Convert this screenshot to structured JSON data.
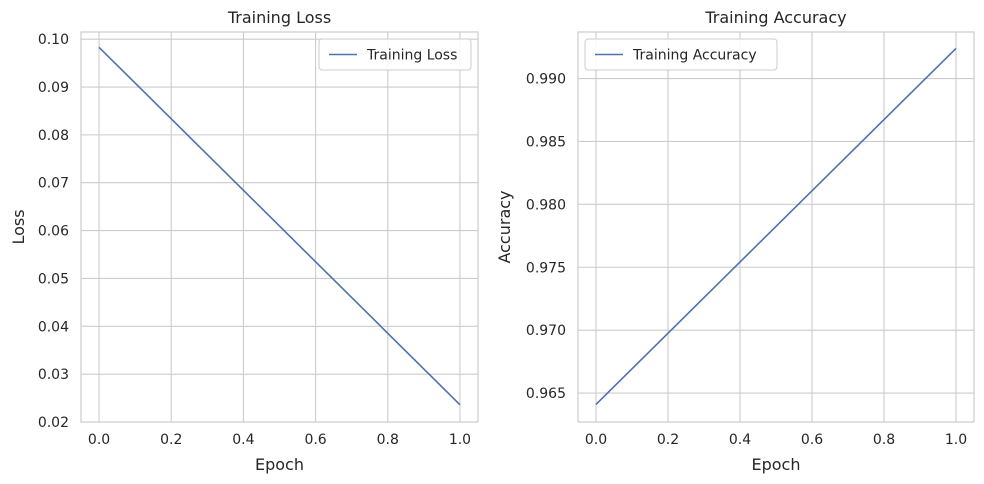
{
  "chart_data": [
    {
      "type": "line",
      "title": "Training Loss",
      "xlabel": "Epoch",
      "ylabel": "Loss",
      "xlim": [
        -0.05,
        1.05
      ],
      "ylim": [
        0.02,
        0.1015
      ],
      "xticks": [
        0.0,
        0.2,
        0.4,
        0.6,
        0.8,
        1.0
      ],
      "xtick_labels": [
        "0.0",
        "0.2",
        "0.4",
        "0.6",
        "0.8",
        "1.0"
      ],
      "yticks": [
        0.02,
        0.03,
        0.04,
        0.05,
        0.06,
        0.07,
        0.08,
        0.09,
        0.1
      ],
      "ytick_labels": [
        "0.02",
        "0.03",
        "0.04",
        "0.05",
        "0.06",
        "0.07",
        "0.08",
        "0.09",
        "0.10"
      ],
      "grid": true,
      "legend": "top-right",
      "series": [
        {
          "name": "Training Loss",
          "color": "#4c72b0",
          "x": [
            0,
            1
          ],
          "y": [
            0.0983,
            0.0236
          ]
        }
      ]
    },
    {
      "type": "line",
      "title": "Training Accuracy",
      "xlabel": "Epoch",
      "ylabel": "Accuracy",
      "xlim": [
        -0.05,
        1.05
      ],
      "ylim": [
        0.9627,
        0.9937
      ],
      "xticks": [
        0.0,
        0.2,
        0.4,
        0.6,
        0.8,
        1.0
      ],
      "xtick_labels": [
        "0.0",
        "0.2",
        "0.4",
        "0.6",
        "0.8",
        "1.0"
      ],
      "yticks": [
        0.965,
        0.97,
        0.975,
        0.98,
        0.985,
        0.99
      ],
      "ytick_labels": [
        "0.965",
        "0.970",
        "0.975",
        "0.980",
        "0.985",
        "0.990"
      ],
      "grid": true,
      "legend": "top-left",
      "series": [
        {
          "name": "Training Accuracy",
          "color": "#4c72b0",
          "x": [
            0,
            1
          ],
          "y": [
            0.9641,
            0.9924
          ]
        }
      ]
    }
  ]
}
